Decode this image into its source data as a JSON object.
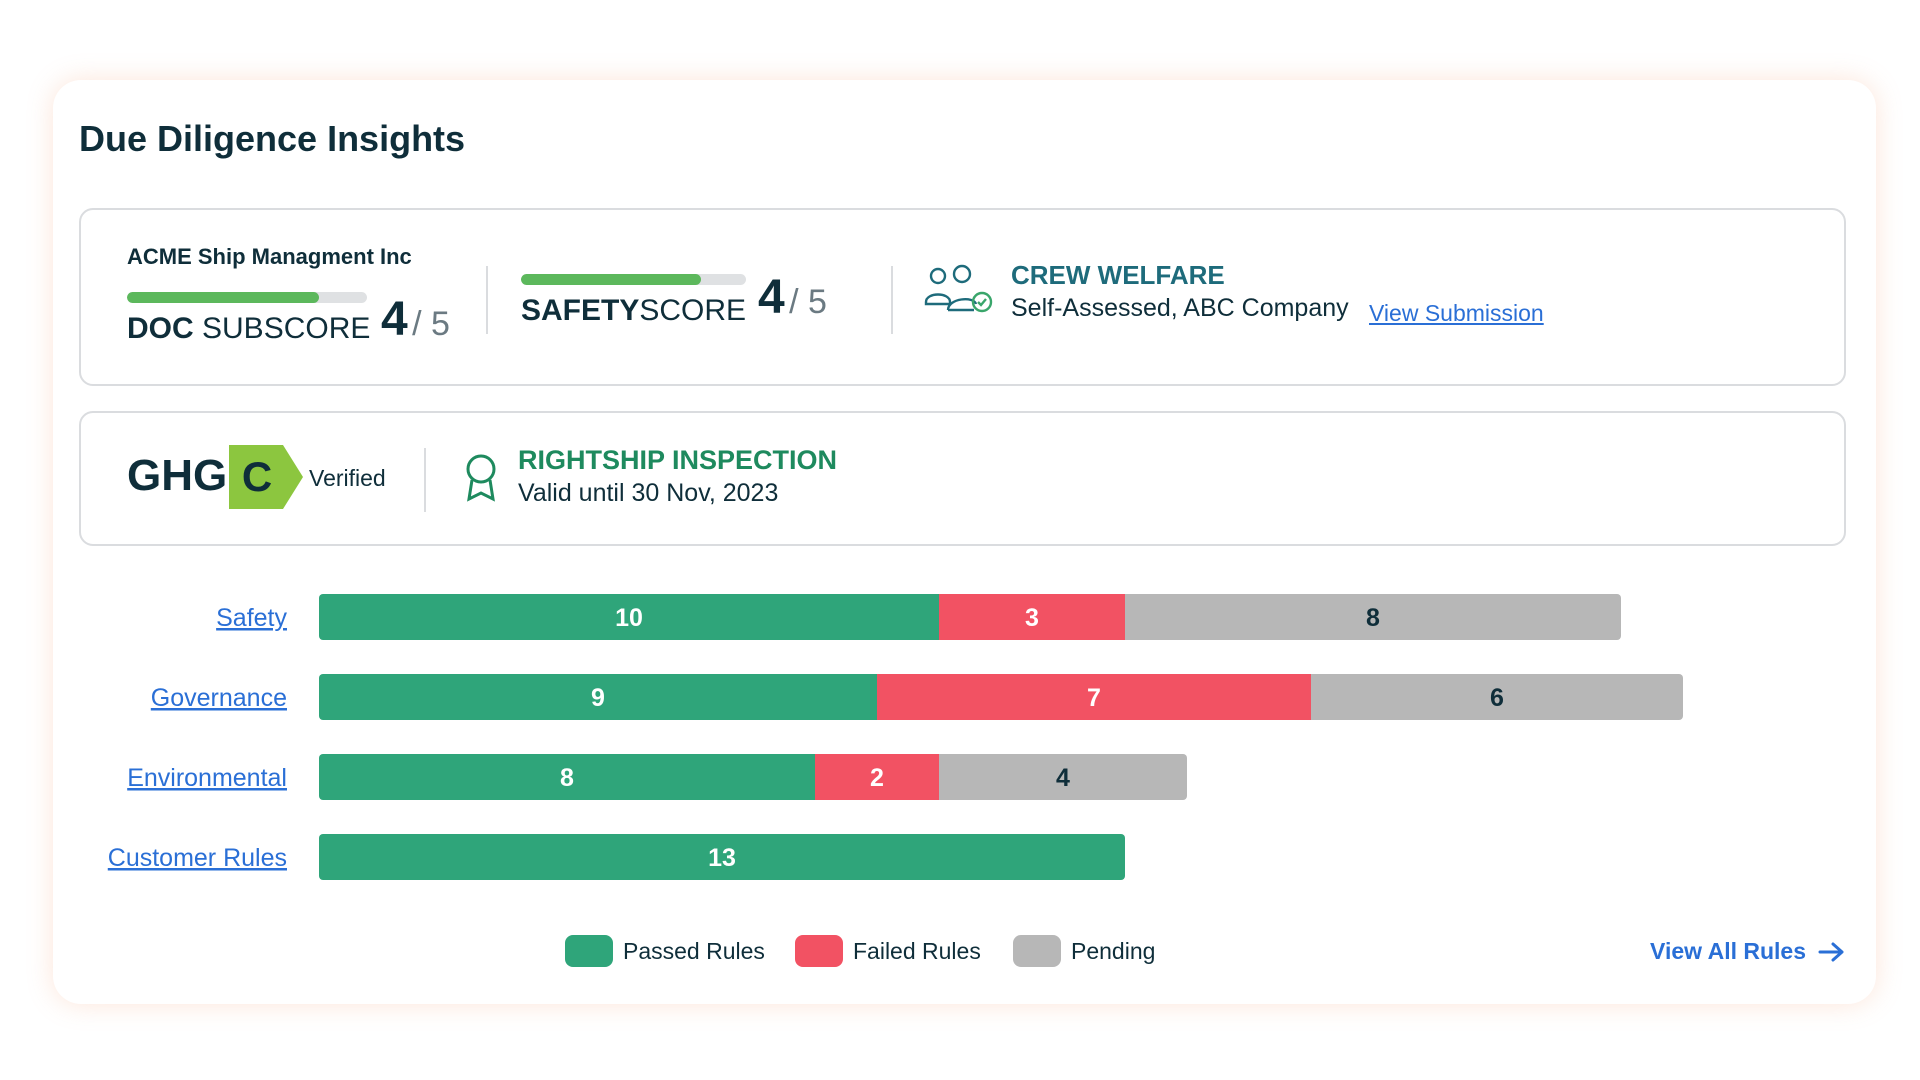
{
  "card": {
    "title": "Due Diligence Insights"
  },
  "scores": {
    "company": "ACME Ship Managment Inc",
    "doc": {
      "label_bold": "DOC",
      "label_rest": " SUBSCORE",
      "score": "4",
      "out_of": "/ 5",
      "fill_fraction": 0.8
    },
    "safety": {
      "label_bold": "SAFETY",
      "label_rest": "SCORE",
      "score": "4",
      "out_of": "/ 5",
      "fill_fraction": 0.8
    },
    "crew": {
      "icon": "users-check-icon",
      "title": "CREW WELFARE",
      "subtitle": "Self-Assessed, ABC Company",
      "link": "View Submission"
    }
  },
  "ghg": {
    "label": "GHG",
    "grade": "C",
    "verified": "Verified",
    "badge_color": "#8cc63f"
  },
  "inspection": {
    "icon": "award-ribbon-icon",
    "title": "RIGHTSHIP INSPECTION",
    "subtitle": "Valid until 30 Nov, 2023"
  },
  "chart_data": {
    "type": "bar",
    "orientation": "horizontal",
    "stacked": true,
    "categories": [
      "Safety",
      "Governance",
      "Environmental",
      "Customer Rules"
    ],
    "series": [
      {
        "name": "Passed Rules",
        "color": "#2fa57a",
        "values": [
          10,
          9,
          8,
          13
        ]
      },
      {
        "name": "Failed Rules",
        "color": "#f25263",
        "values": [
          3,
          7,
          2,
          0
        ]
      },
      {
        "name": "Pending",
        "color": "#b7b7b7",
        "values": [
          8,
          6,
          4,
          0
        ]
      }
    ],
    "legend_position": "bottom-center",
    "grid": false
  },
  "footer": {
    "view_all": "View All Rules"
  }
}
